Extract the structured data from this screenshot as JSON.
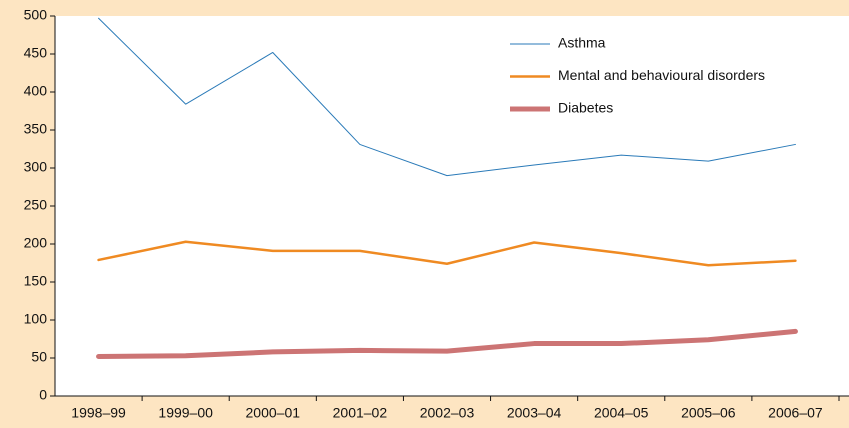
{
  "chart_data": {
    "type": "line",
    "categories": [
      "1998–99",
      "1999–00",
      "2000–01",
      "2001–02",
      "2002–03",
      "2003–04",
      "2004–05",
      "2005–06",
      "2006–07"
    ],
    "series": [
      {
        "name": "Asthma",
        "color": "#2a7ab8",
        "width": 1,
        "values": [
          497,
          384,
          452,
          331,
          290,
          304,
          317,
          309,
          331
        ]
      },
      {
        "name": "Mental and behavioural disorders",
        "color": "#ef8a22",
        "width": 2.5,
        "values": [
          179,
          203,
          191,
          191,
          174,
          202,
          188,
          172,
          178
        ]
      },
      {
        "name": "Diabetes",
        "color": "#cc7474",
        "width": 5,
        "values": [
          52,
          53,
          58,
          60,
          59,
          69,
          69,
          74,
          85
        ]
      }
    ],
    "ylim": [
      0,
      500
    ],
    "yticks": [
      0,
      50,
      100,
      150,
      200,
      250,
      300,
      350,
      400,
      450,
      500
    ],
    "legend": "top-right"
  }
}
